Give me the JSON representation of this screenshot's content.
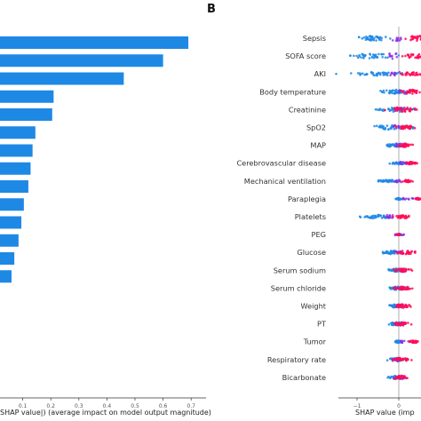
{
  "panel_a": {
    "xlabel": "SHAP value|) (average impact on model output magnitude)",
    "x_ticks": [
      "0.1",
      "0.2",
      "0.3",
      "0.4",
      "0.5",
      "0.6",
      "0.7"
    ]
  },
  "panel_b": {
    "label": "B",
    "xlabel": "SHAP value (imp",
    "x_ticks": [
      "−1",
      "0"
    ]
  },
  "colors": {
    "bar": "#1e88e5",
    "low": "#1e88e5",
    "high": "#ff0d57",
    "mid": "#8a2be2"
  },
  "chart_data": [
    {
      "type": "bar",
      "orientation": "horizontal",
      "xlabel": "SHAP value|) (average impact on model output magnitude)",
      "xlim": [
        0,
        0.72
      ],
      "values": [
        0.69,
        0.6,
        0.46,
        0.21,
        0.205,
        0.145,
        0.135,
        0.128,
        0.12,
        0.104,
        0.095,
        0.085,
        0.07,
        0.06
      ]
    },
    {
      "type": "scatter",
      "subtype": "beeswarm",
      "xlabel": "SHAP value (imp",
      "x_ticks": [
        -1,
        0
      ],
      "categories": [
        "Sepsis",
        "SOFA score",
        "AKI",
        "Body temperature",
        "Creatinine",
        "SpO2",
        "MAP",
        "Cerebrovascular disease",
        "Mechanical ventilation",
        "Paraplegia",
        "Platelets",
        "PEG",
        "Glucose",
        "Serum sodium",
        "Serum chloride",
        "Weight",
        "PT",
        "Tumor",
        "Respiratory rate",
        "Bicarbonate"
      ]
    }
  ]
}
